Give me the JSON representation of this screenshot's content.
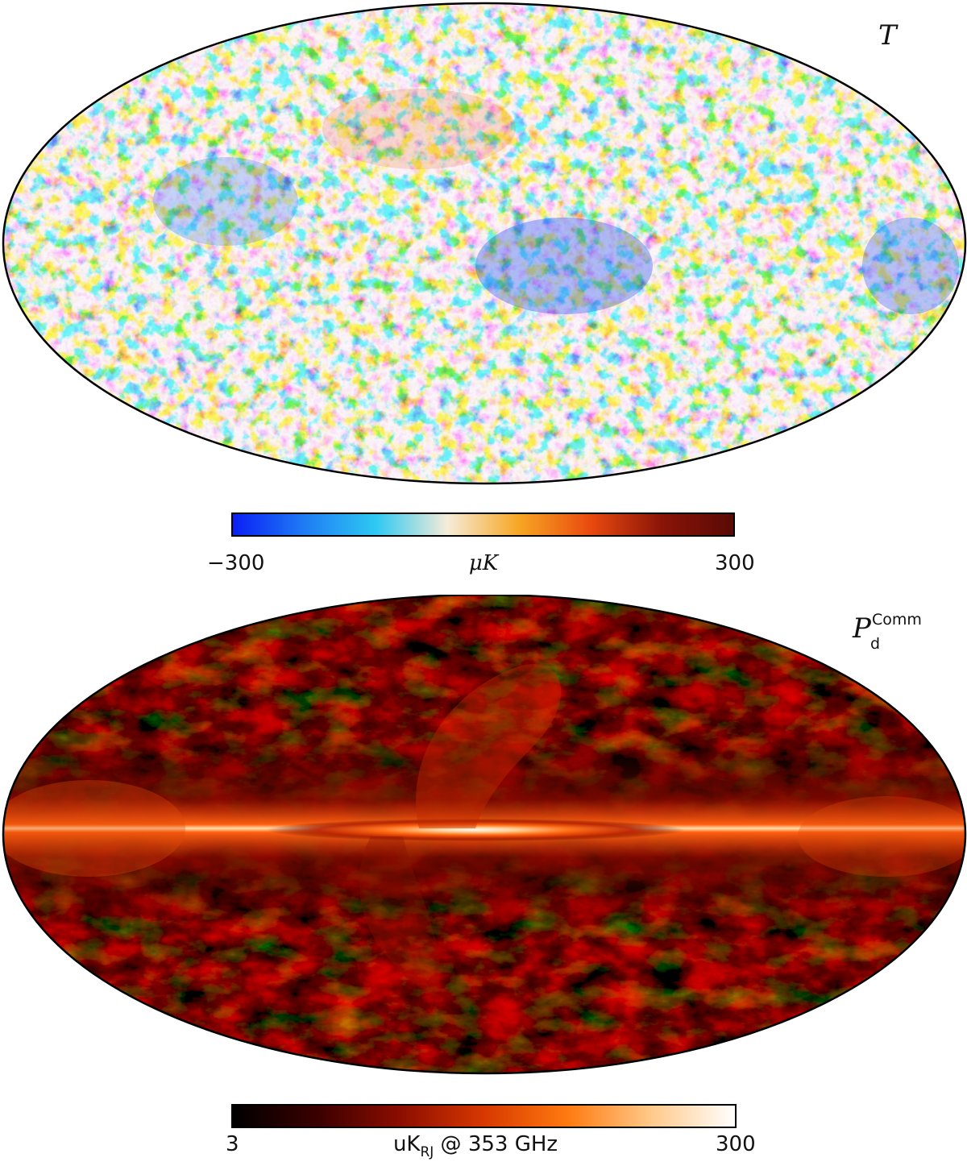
{
  "maps": [
    {
      "label": "T",
      "label_sup": "",
      "label_sub": "",
      "colorbar": {
        "min_label": "−300",
        "max_label": "300",
        "unit": "μK",
        "colors": [
          "#0a1ff5",
          "#1f7cf5",
          "#2ec9f2",
          "#f5ecd8",
          "#f7a623",
          "#ea4a0f",
          "#8a1408",
          "#5a0a06"
        ]
      }
    },
    {
      "label": "P",
      "label_sup": "Comm",
      "label_sub": "d",
      "colorbar": {
        "min_label": "3",
        "max_label": "300",
        "unit_main": "uK",
        "unit_sub": "RJ",
        "unit_tail": " @ 353 GHz",
        "colors": [
          "#000000",
          "#3a0000",
          "#8c0d00",
          "#d73800",
          "#ff7a10",
          "#ffc98a",
          "#ffffff"
        ]
      }
    }
  ]
}
